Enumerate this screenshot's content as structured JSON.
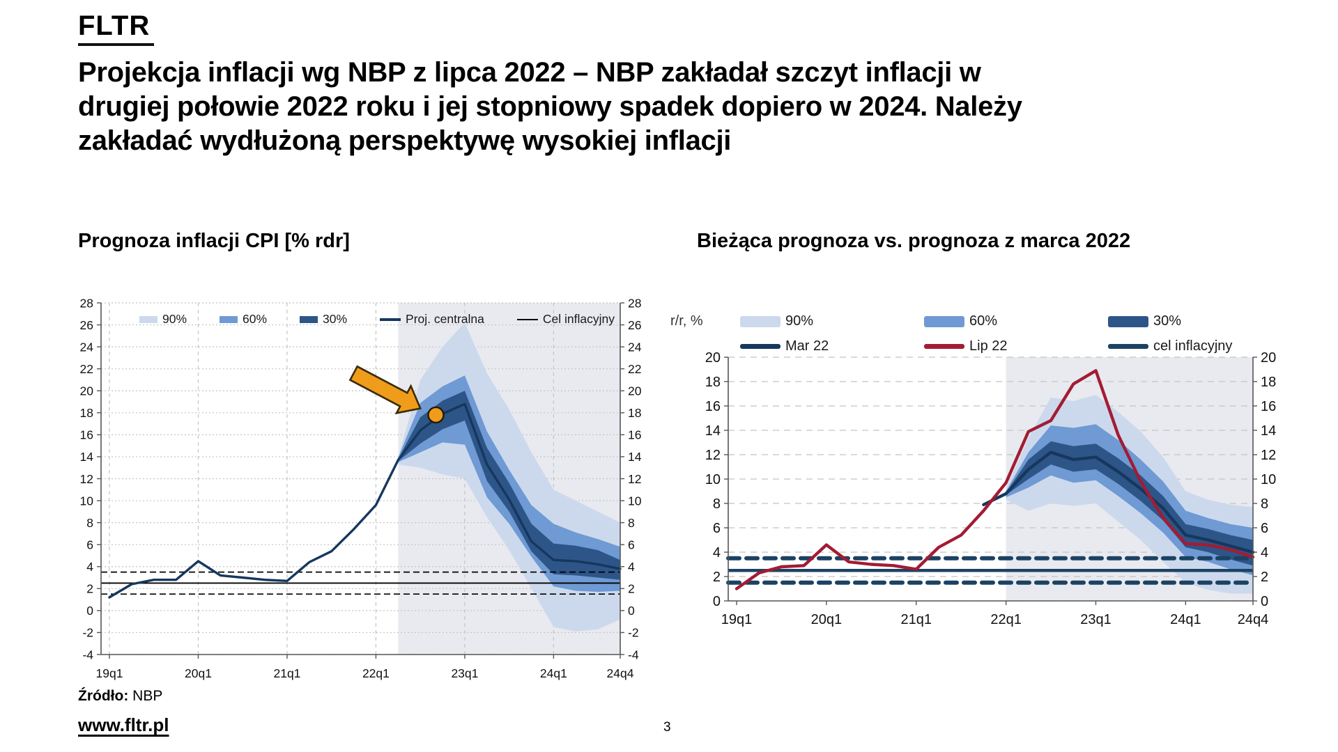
{
  "header": {
    "logo": "FLTR",
    "title_lines": [
      "Projekcja inflacji wg NBP z lipca 2022 – NBP zakładał szczyt inflacji w",
      "drugiej połowie 2022 roku i jej stopniowy spadek dopiero w 2024. Należy",
      "zakładać wydłużoną perspektywę wysokiej inflacji"
    ]
  },
  "footer": {
    "source_label": "Źródło:",
    "source_value": "NBP",
    "website": "www.fltr.pl",
    "page_number": "3"
  },
  "palette": {
    "band90": "#ccd9ed",
    "band60": "#6f9ad3",
    "band30": "#2d5588",
    "navy": "#16375e",
    "red": "#a21c33",
    "black": "#000000",
    "target_navy": "#1c4263",
    "orange": "#f09c1b",
    "orange_outline": "#3a2b08",
    "projection_bg": "#e8eaef",
    "grid": "#c4c4c4",
    "axis": "#555555"
  },
  "chart_data": [
    {
      "id": "cpi-projection",
      "type": "area",
      "title": "Prognoza inflacji CPI [% rdr]",
      "ylabel": "",
      "ylim": [
        -4,
        28
      ],
      "ytick_step": 2,
      "ytick_labels": [
        "28",
        "26",
        "24",
        "22",
        "20",
        "18",
        "16",
        "14",
        "12",
        "10",
        "8",
        "6",
        "4",
        "2",
        "0",
        "-2",
        "-4"
      ],
      "n_points": 24,
      "x_ticks": [
        {
          "i": 0,
          "label": "19q1"
        },
        {
          "i": 4,
          "label": "20q1"
        },
        {
          "i": 8,
          "label": "21q1"
        },
        {
          "i": 12,
          "label": "22q1"
        },
        {
          "i": 16,
          "label": "23q1"
        },
        {
          "i": 20,
          "label": "24q1"
        },
        {
          "i": 23,
          "label": "24q4"
        }
      ],
      "projection_start_index": 13,
      "legend": {
        "axis_label": null,
        "rows": [
          [
            {
              "label": "90%",
              "swatch": "band",
              "colorKey": "band90"
            },
            {
              "label": "60%",
              "swatch": "band",
              "colorKey": "band60"
            },
            {
              "label": "30%",
              "swatch": "band",
              "colorKey": "band30"
            },
            {
              "label": "Proj. centralna",
              "swatch": "line",
              "colorKey": "navy",
              "line_h": 4
            },
            {
              "label": "Cel inflacyjny",
              "swatch": "line",
              "colorKey": "black",
              "line_h": 2
            }
          ]
        ]
      },
      "bands": [
        {
          "level": "90",
          "colorKey": "band90",
          "start": 13,
          "upper": [
            14.0,
            21.0,
            24.0,
            26.2,
            21.6,
            18.3,
            14.4,
            11.0,
            10.0,
            9.0,
            8.0
          ],
          "lower": [
            13.3,
            13.0,
            12.4,
            12.0,
            8.5,
            5.5,
            2.0,
            -1.5,
            -1.9,
            -1.7,
            -0.8
          ]
        },
        {
          "level": "60",
          "colorKey": "band60",
          "start": 13,
          "upper": [
            13.9,
            18.9,
            20.4,
            21.4,
            16.3,
            12.8,
            9.6,
            7.9,
            7.1,
            6.5,
            5.8
          ],
          "lower": [
            13.5,
            14.4,
            15.3,
            15.1,
            10.3,
            7.9,
            4.9,
            2.2,
            1.8,
            1.7,
            1.8
          ]
        },
        {
          "level": "30",
          "colorKey": "band30",
          "start": 13,
          "upper": [
            13.8,
            17.6,
            19.1,
            20.0,
            14.8,
            11.6,
            7.9,
            6.1,
            5.9,
            5.5,
            4.6
          ],
          "lower": [
            13.6,
            15.2,
            16.5,
            17.3,
            11.8,
            9.0,
            5.4,
            3.3,
            3.2,
            3.0,
            2.8
          ]
        }
      ],
      "lines": [
        {
          "name": "proj-centralna",
          "label": "Proj. centralna",
          "colorKey": "navy",
          "width": 3.4,
          "start": 0,
          "values": [
            1.2,
            2.4,
            2.8,
            2.8,
            4.5,
            3.2,
            3.0,
            2.8,
            2.7,
            4.4,
            5.4,
            7.4,
            9.6,
            13.7,
            16.4,
            17.9,
            18.8,
            13.3,
            10.1,
            6.3,
            4.6,
            4.5,
            4.2,
            3.8
          ]
        }
      ],
      "target": {
        "label": "Cel inflacyjny",
        "mid": 2.5,
        "upper": 3.5,
        "lower": 1.5,
        "colorKey": "black",
        "mid_width": 1.8,
        "band_width": 1.7,
        "dash": "9 5",
        "cap": "butt"
      },
      "annotations": [
        {
          "type": "block_arrow",
          "from_i": 11.0,
          "from_v": 21.6,
          "to_i": 14.0,
          "to_v": 18.4
        },
        {
          "type": "dot",
          "i": 14.7,
          "v": 17.8
        }
      ]
    },
    {
      "id": "projection-comparison",
      "type": "area",
      "title": "Bieżąca prognoza vs. prognoza z marca 2022",
      "ylabel": "r/r, %",
      "ylim": [
        0,
        20
      ],
      "ytick_step": 2,
      "ytick_labels": [
        "20",
        "18",
        "16",
        "14",
        "12",
        "10",
        "8",
        "6",
        "4",
        "2",
        "0"
      ],
      "n_points": 24,
      "x_ticks": [
        {
          "i": 0,
          "label": "19q1"
        },
        {
          "i": 4,
          "label": "20q1"
        },
        {
          "i": 8,
          "label": "21q1"
        },
        {
          "i": 12,
          "label": "22q1"
        },
        {
          "i": 16,
          "label": "23q1"
        },
        {
          "i": 20,
          "label": "24q1"
        },
        {
          "i": 23,
          "label": "24q4"
        }
      ],
      "projection_start_index": 12,
      "legend": {
        "axis_label": "r/r, %",
        "rows": [
          [
            {
              "label": "90%",
              "swatch": "band",
              "colorKey": "band90"
            },
            {
              "label": "60%",
              "swatch": "band",
              "colorKey": "band60"
            },
            {
              "label": "30%",
              "swatch": "band",
              "colorKey": "band30"
            }
          ],
          [
            {
              "label": "Mar 22",
              "swatch": "line",
              "colorKey": "navy",
              "line_h": 7
            },
            {
              "label": "Lip 22",
              "swatch": "line",
              "colorKey": "red",
              "line_h": 7
            },
            {
              "label": "cel inflacyjny",
              "swatch": "line",
              "colorKey": "target_navy",
              "line_h": 7
            }
          ]
        ]
      },
      "bands": [
        {
          "level": "90",
          "colorKey": "band90",
          "start": 12,
          "upper": [
            9.2,
            13.4,
            16.7,
            16.4,
            16.9,
            15.5,
            13.9,
            11.8,
            9.0,
            8.3,
            7.9,
            7.7
          ],
          "lower": [
            8.3,
            7.4,
            8.0,
            7.8,
            8.0,
            6.5,
            5.0,
            3.2,
            1.5,
            0.9,
            0.6,
            0.6
          ]
        },
        {
          "level": "60",
          "colorKey": "band60",
          "start": 12,
          "upper": [
            9.0,
            12.2,
            14.4,
            14.2,
            14.5,
            13.2,
            11.6,
            9.8,
            7.4,
            6.8,
            6.3,
            6.0
          ],
          "lower": [
            8.5,
            9.3,
            10.3,
            9.7,
            9.9,
            8.6,
            7.2,
            5.6,
            3.6,
            3.2,
            2.6,
            2.1
          ]
        },
        {
          "level": "30",
          "colorKey": "band30",
          "start": 12,
          "upper": [
            8.9,
            11.6,
            13.1,
            12.7,
            12.9,
            11.7,
            10.3,
            8.6,
            6.3,
            5.9,
            5.4,
            5.0
          ],
          "lower": [
            8.7,
            10.0,
            11.2,
            10.6,
            10.8,
            9.6,
            8.2,
            6.6,
            4.4,
            4.0,
            3.4,
            2.9
          ]
        }
      ],
      "lines": [
        {
          "name": "mar-22",
          "label": "Mar 22",
          "colorKey": "navy",
          "width": 4.4,
          "start": 11,
          "values": [
            7.9,
            8.8,
            10.8,
            12.2,
            11.6,
            11.8,
            10.6,
            9.2,
            7.6,
            5.4,
            5.0,
            4.5,
            4.0
          ]
        },
        {
          "name": "lip-22",
          "label": "Lip 22",
          "colorKey": "red",
          "width": 4.4,
          "start": 0,
          "values": [
            1.0,
            2.3,
            2.8,
            2.9,
            4.6,
            3.2,
            3.0,
            2.9,
            2.6,
            4.4,
            5.4,
            7.4,
            9.7,
            13.9,
            14.8,
            17.8,
            18.9,
            13.6,
            9.8,
            6.8,
            4.7,
            4.6,
            4.2,
            3.6
          ]
        }
      ],
      "target": {
        "label": "cel inflacyjny",
        "mid": 2.5,
        "upper": 3.5,
        "lower": 1.5,
        "colorKey": "target_navy",
        "mid_width": 4.5,
        "band_width": 6,
        "dash": "16 10",
        "cap": "round"
      },
      "annotations": []
    }
  ]
}
